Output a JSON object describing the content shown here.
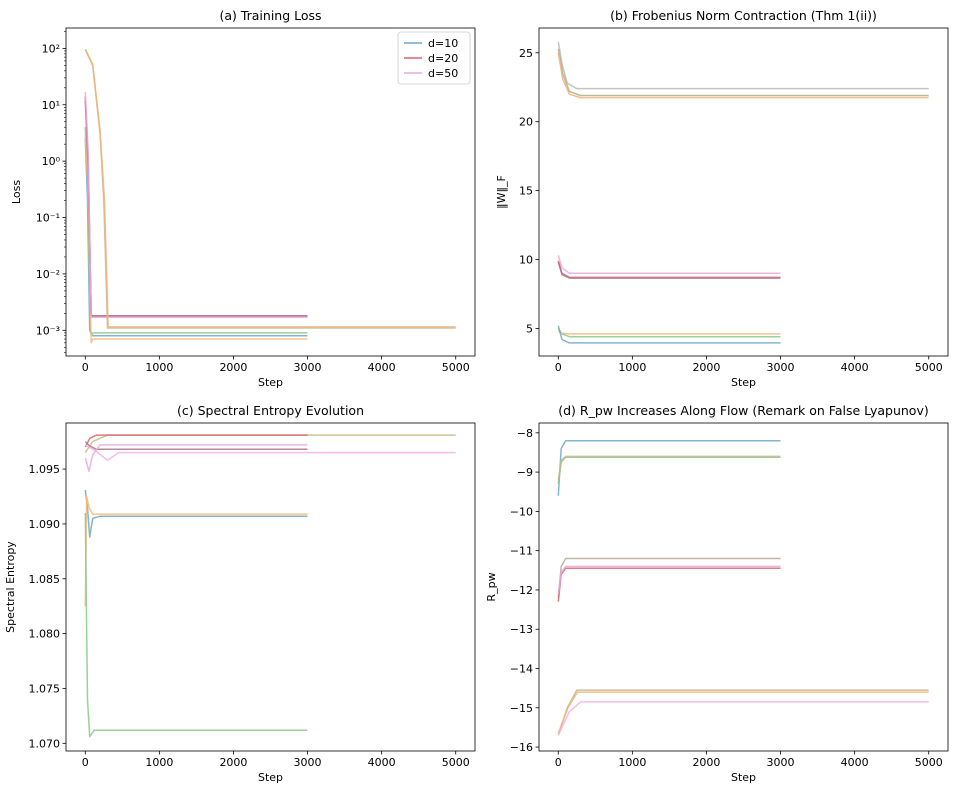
{
  "chart_data": [
    {
      "id": "a",
      "type": "line",
      "title": "(a) Training Loss",
      "xlabel": "Step",
      "ylabel": "Loss",
      "yscale": "log",
      "xlim": [
        -260,
        5260
      ],
      "ylim": [
        0.00035,
        230
      ],
      "xticks": [
        0,
        1000,
        2000,
        3000,
        4000,
        5000
      ],
      "xtick_labels": [
        "0",
        "1000",
        "2000",
        "3000",
        "4000",
        "5000"
      ],
      "yticks": [
        0.001,
        0.01,
        0.1,
        1,
        10,
        100
      ],
      "ytick_labels": [
        "10⁻³",
        "10⁻²",
        "10⁻¹",
        "10⁰",
        "10¹",
        "10²"
      ],
      "legend": {
        "position": "upper right",
        "entries": [
          {
            "label": "d=10",
            "color": "#6fa8c8"
          },
          {
            "label": "d=20",
            "color": "#d9646b"
          },
          {
            "label": "d=50",
            "color": "#e9a8e0"
          }
        ]
      },
      "series": [
        {
          "color": "#6fa8c8",
          "values": [
            [
              0,
              2.5
            ],
            [
              30,
              0.2
            ],
            [
              60,
              0.001
            ],
            [
              100,
              0.0008
            ],
            [
              3000,
              0.0008
            ]
          ]
        },
        {
          "color": "#8cc78c",
          "values": [
            [
              0,
              4
            ],
            [
              30,
              0.5
            ],
            [
              70,
              0.0009
            ],
            [
              100,
              0.0009
            ],
            [
              3000,
              0.0009
            ]
          ]
        },
        {
          "color": "#f8b878",
          "values": [
            [
              0,
              3
            ],
            [
              40,
              0.3
            ],
            [
              80,
              0.0006
            ],
            [
              100,
              0.0007
            ],
            [
              3000,
              0.0007
            ]
          ]
        },
        {
          "color": "#d9646b",
          "values": [
            [
              0,
              14
            ],
            [
              40,
              1.0
            ],
            [
              80,
              0.0019
            ],
            [
              100,
              0.0018
            ],
            [
              3000,
              0.0018
            ]
          ]
        },
        {
          "color": "#a9748c",
          "values": [
            [
              0,
              12
            ],
            [
              40,
              0.8
            ],
            [
              80,
              0.0018
            ],
            [
              100,
              0.0018
            ],
            [
              3000,
              0.0018
            ]
          ]
        },
        {
          "color": "#e9a8e0",
          "values": [
            [
              0,
              17
            ],
            [
              40,
              1.5
            ],
            [
              80,
              0.0017
            ],
            [
              100,
              0.0017
            ],
            [
              3000,
              0.0017
            ]
          ]
        },
        {
          "color": "#c5b88a",
          "values": [
            [
              0,
              95
            ],
            [
              100,
              50
            ],
            [
              200,
              3
            ],
            [
              250,
              0.2
            ],
            [
              300,
              0.0011
            ],
            [
              5000,
              0.0011
            ]
          ]
        },
        {
          "color": "#f2b27a",
          "values": [
            [
              0,
              97
            ],
            [
              100,
              52
            ],
            [
              200,
              3.5
            ],
            [
              260,
              0.2
            ],
            [
              310,
              0.00115
            ],
            [
              5000,
              0.00115
            ]
          ]
        }
      ]
    },
    {
      "id": "b",
      "type": "line",
      "title": "(b) Frobenius Norm Contraction (Thm 1(ii))",
      "xlabel": "Step",
      "ylabel": "‖W‖_F",
      "yscale": "linear",
      "xlim": [
        -260,
        5260
      ],
      "ylim": [
        3.0,
        26.8
      ],
      "xticks": [
        0,
        1000,
        2000,
        3000,
        4000,
        5000
      ],
      "xtick_labels": [
        "0",
        "1000",
        "2000",
        "3000",
        "4000",
        "5000"
      ],
      "yticks": [
        5,
        10,
        15,
        20,
        25
      ],
      "ytick_labels": [
        "5",
        "10",
        "15",
        "20",
        "25"
      ],
      "series": [
        {
          "color": "#b8b8b8",
          "values": [
            [
              0,
              25.8
            ],
            [
              50,
              24.2
            ],
            [
              120,
              22.8
            ],
            [
              250,
              22.4
            ],
            [
              5000,
              22.4
            ]
          ]
        },
        {
          "color": "#a9b08a",
          "values": [
            [
              0,
              25.3
            ],
            [
              60,
              23.5
            ],
            [
              150,
              22.2
            ],
            [
              300,
              21.9
            ],
            [
              5000,
              21.9
            ]
          ]
        },
        {
          "color": "#f2b27a",
          "values": [
            [
              0,
              25.0
            ],
            [
              60,
              23.1
            ],
            [
              150,
              22.0
            ],
            [
              300,
              21.75
            ],
            [
              5000,
              21.75
            ]
          ]
        },
        {
          "color": "#e9a8e0",
          "values": [
            [
              0,
              10.3
            ],
            [
              50,
              9.4
            ],
            [
              150,
              9.0
            ],
            [
              3000,
              9.0
            ]
          ]
        },
        {
          "color": "#d9646b",
          "values": [
            [
              0,
              9.9
            ],
            [
              50,
              9.0
            ],
            [
              150,
              8.7
            ],
            [
              3000,
              8.7
            ]
          ]
        },
        {
          "color": "#a9748c",
          "values": [
            [
              0,
              9.8
            ],
            [
              50,
              8.9
            ],
            [
              150,
              8.65
            ],
            [
              3000,
              8.65
            ]
          ]
        },
        {
          "color": "#8cc78c",
          "values": [
            [
              0,
              5.0
            ],
            [
              50,
              4.6
            ],
            [
              150,
              4.4
            ],
            [
              3000,
              4.4
            ]
          ]
        },
        {
          "color": "#f8b878",
          "values": [
            [
              0,
              4.8
            ],
            [
              50,
              4.65
            ],
            [
              150,
              4.6
            ],
            [
              3000,
              4.6
            ]
          ]
        },
        {
          "color": "#6fa8c8",
          "values": [
            [
              0,
              5.2
            ],
            [
              50,
              4.2
            ],
            [
              150,
              3.95
            ],
            [
              3000,
              3.95
            ]
          ]
        }
      ]
    },
    {
      "id": "c",
      "type": "line",
      "title": "(c) Spectral Entropy Evolution",
      "xlabel": "Step",
      "ylabel": "Spectral Entropy",
      "yscale": "linear",
      "xlim": [
        -260,
        5260
      ],
      "ylim": [
        1.0693,
        1.0992
      ],
      "xticks": [
        0,
        1000,
        2000,
        3000,
        4000,
        5000
      ],
      "xtick_labels": [
        "0",
        "1000",
        "2000",
        "3000",
        "4000",
        "5000"
      ],
      "yticks": [
        1.07,
        1.075,
        1.08,
        1.085,
        1.09,
        1.095
      ],
      "ytick_labels": [
        "1.070",
        "1.075",
        "1.080",
        "1.085",
        "1.090",
        "1.095"
      ],
      "series": [
        {
          "color": "#6fa8c8",
          "values": [
            [
              0,
              1.0931
            ],
            [
              30,
              1.0915
            ],
            [
              60,
              1.0888
            ],
            [
              100,
              1.0905
            ],
            [
              200,
              1.0907
            ],
            [
              3000,
              1.0907
            ]
          ]
        },
        {
          "color": "#f8b878",
          "values": [
            [
              0,
              1.0825
            ],
            [
              20,
              1.0925
            ],
            [
              50,
              1.0915
            ],
            [
              100,
              1.0909
            ],
            [
              3000,
              1.0909
            ]
          ]
        },
        {
          "color": "#8cc78c",
          "values": [
            [
              0,
              1.091
            ],
            [
              30,
              1.074
            ],
            [
              60,
              1.0706
            ],
            [
              120,
              1.0712
            ],
            [
              3000,
              1.0712
            ]
          ]
        },
        {
          "color": "#c5b88a",
          "values": [
            [
              0,
              1.0965
            ],
            [
              100,
              1.0975
            ],
            [
              300,
              1.0981
            ],
            [
              5000,
              1.0981
            ]
          ]
        },
        {
          "color": "#d9646b",
          "values": [
            [
              0,
              1.097
            ],
            [
              60,
              1.0978
            ],
            [
              150,
              1.0981
            ],
            [
              3000,
              1.0981
            ]
          ]
        },
        {
          "color": "#a9748c",
          "values": [
            [
              0,
              1.0975
            ],
            [
              60,
              1.0971
            ],
            [
              150,
              1.0968
            ],
            [
              3000,
              1.0968
            ]
          ]
        },
        {
          "color": "#e9a8e0",
          "values": [
            [
              0,
              1.096
            ],
            [
              50,
              1.0948
            ],
            [
              100,
              1.0963
            ],
            [
              200,
              1.0972
            ],
            [
              3000,
              1.0972
            ]
          ]
        },
        {
          "color": "#f2b2e8",
          "values": [
            [
              0,
              1.0972
            ],
            [
              150,
              1.0966
            ],
            [
              300,
              1.0958
            ],
            [
              450,
              1.0965
            ],
            [
              5000,
              1.0965
            ]
          ]
        }
      ]
    },
    {
      "id": "d",
      "type": "line",
      "title": "(d) R_pw Increases Along Flow (Remark on False Lyapunov)",
      "xlabel": "Step",
      "ylabel": "R_pw",
      "yscale": "linear",
      "xlim": [
        -260,
        5260
      ],
      "ylim": [
        -16.1,
        -7.75
      ],
      "xticks": [
        0,
        1000,
        2000,
        3000,
        4000,
        5000
      ],
      "xtick_labels": [
        "0",
        "1000",
        "2000",
        "3000",
        "4000",
        "5000"
      ],
      "yticks": [
        -16,
        -15,
        -14,
        -13,
        -12,
        -11,
        -10,
        -9,
        -8
      ],
      "ytick_labels": [
        "−16",
        "−15",
        "−14",
        "−13",
        "−12",
        "−11",
        "−10",
        "−9",
        "−8"
      ],
      "series": [
        {
          "color": "#6fa8c8",
          "values": [
            [
              0,
              -9.6
            ],
            [
              40,
              -8.4
            ],
            [
              100,
              -8.2
            ],
            [
              3000,
              -8.2
            ]
          ]
        },
        {
          "color": "#8cc78c",
          "values": [
            [
              0,
              -9.3
            ],
            [
              40,
              -8.75
            ],
            [
              100,
              -8.62
            ],
            [
              3000,
              -8.62
            ]
          ]
        },
        {
          "color": "#c5b88a",
          "values": [
            [
              0,
              -9.2
            ],
            [
              40,
              -8.7
            ],
            [
              100,
              -8.6
            ],
            [
              3000,
              -8.6
            ]
          ]
        },
        {
          "color": "#b8a898",
          "values": [
            [
              0,
              -12.2
            ],
            [
              40,
              -11.4
            ],
            [
              100,
              -11.2
            ],
            [
              3000,
              -11.2
            ]
          ]
        },
        {
          "color": "#d9646b",
          "values": [
            [
              0,
              -12.3
            ],
            [
              40,
              -11.6
            ],
            [
              100,
              -11.45
            ],
            [
              3000,
              -11.45
            ]
          ]
        },
        {
          "color": "#e9a8e0",
          "values": [
            [
              0,
              -12.1
            ],
            [
              40,
              -11.55
            ],
            [
              100,
              -11.4
            ],
            [
              3000,
              -11.4
            ]
          ]
        },
        {
          "color": "#c5b88a",
          "values": [
            [
              0,
              -15.7
            ],
            [
              120,
              -15.0
            ],
            [
              250,
              -14.55
            ],
            [
              5000,
              -14.55
            ]
          ]
        },
        {
          "color": "#f2b27a",
          "values": [
            [
              0,
              -15.65
            ],
            [
              130,
              -15.0
            ],
            [
              260,
              -14.6
            ],
            [
              5000,
              -14.6
            ]
          ]
        },
        {
          "color": "#f2b2e8",
          "values": [
            [
              0,
              -15.7
            ],
            [
              150,
              -15.1
            ],
            [
              300,
              -14.85
            ],
            [
              5000,
              -14.85
            ]
          ]
        }
      ]
    }
  ]
}
